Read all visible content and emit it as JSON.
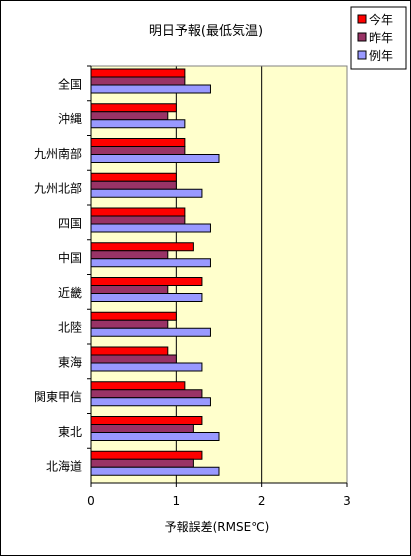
{
  "chart_data": {
    "type": "bar",
    "orientation": "horizontal",
    "title": "明日予報(最低気温)",
    "xlabel": "予報誤差(RMSE℃)",
    "ylabel": "",
    "xlim": [
      0,
      3
    ],
    "x_ticks": [
      "0",
      "1",
      "2",
      "3"
    ],
    "categories": [
      "全国",
      "沖縄",
      "九州南部",
      "九州北部",
      "四国",
      "中国",
      "近畿",
      "北陸",
      "東海",
      "関東甲信",
      "東北",
      "北海道"
    ],
    "series": [
      {
        "name": "今年",
        "color": "#ff0000",
        "values": [
          1.1,
          1.0,
          1.1,
          1.0,
          1.1,
          1.2,
          1.3,
          1.0,
          0.9,
          1.1,
          1.3,
          1.3
        ]
      },
      {
        "name": "昨年",
        "color": "#993366",
        "values": [
          1.1,
          0.9,
          1.1,
          1.0,
          1.1,
          0.9,
          0.9,
          0.9,
          1.0,
          1.3,
          1.2,
          1.2
        ]
      },
      {
        "name": "例年",
        "color": "#9999ff",
        "values": [
          1.4,
          1.1,
          1.5,
          1.3,
          1.4,
          1.4,
          1.3,
          1.4,
          1.3,
          1.4,
          1.5,
          1.5
        ]
      }
    ],
    "legend": {
      "position": "top-right"
    },
    "grid": {
      "vertical_major": true
    },
    "plot_background": "#ffffcc"
  }
}
